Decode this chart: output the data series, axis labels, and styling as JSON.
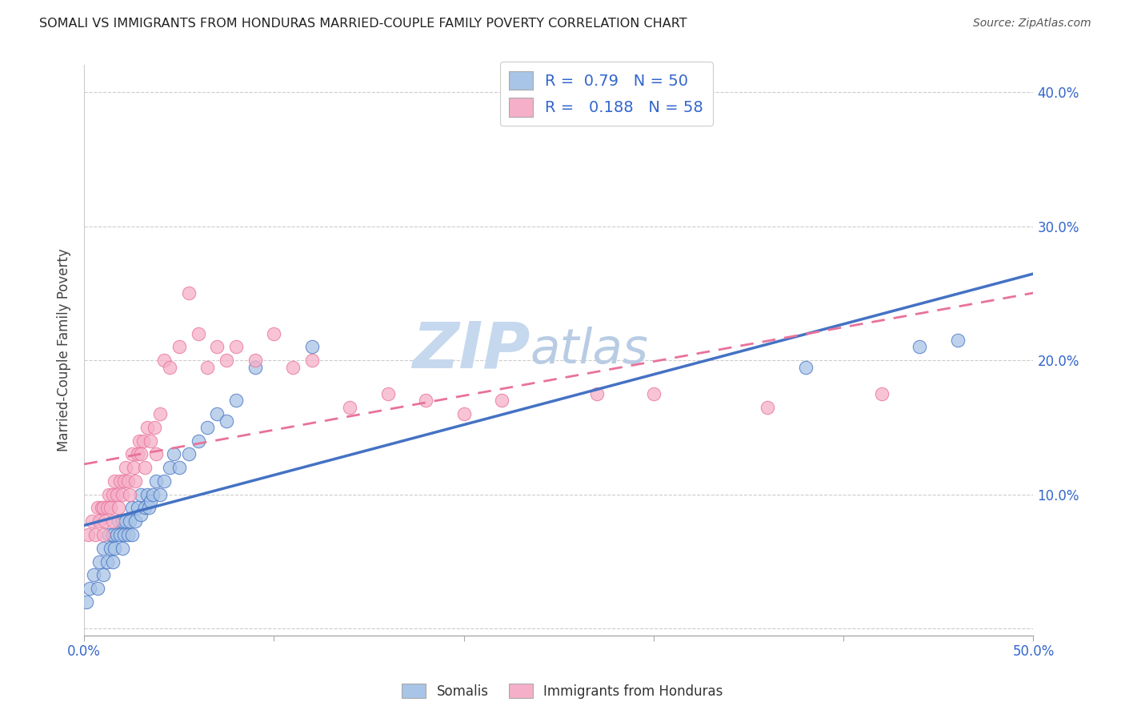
{
  "title": "SOMALI VS IMMIGRANTS FROM HONDURAS MARRIED-COUPLE FAMILY POVERTY CORRELATION CHART",
  "source": "Source: ZipAtlas.com",
  "ylabel": "Married-Couple Family Poverty",
  "xlim": [
    0.0,
    0.5
  ],
  "ylim": [
    -0.005,
    0.42
  ],
  "xticks": [
    0.0,
    0.1,
    0.2,
    0.3,
    0.4,
    0.5
  ],
  "xticklabels": [
    "0.0%",
    "",
    "",
    "",
    "",
    "50.0%"
  ],
  "yticks": [
    0.0,
    0.1,
    0.2,
    0.3,
    0.4
  ],
  "yticklabels_right": [
    "",
    "10.0%",
    "20.0%",
    "30.0%",
    "40.0%"
  ],
  "legend_labels": [
    "Somalis",
    "Immigrants from Honduras"
  ],
  "somali_color": "#a8c4e6",
  "honduras_color": "#f5afc8",
  "somali_line_color": "#4472c4",
  "honduras_line_color": "#e8729a",
  "R_somali": 0.79,
  "N_somali": 50,
  "R_honduras": 0.188,
  "N_honduras": 58,
  "watermark_zip": "ZIP",
  "watermark_atlas": "atlas",
  "watermark_color": "#c5d8ee",
  "somali_x": [
    0.001,
    0.003,
    0.005,
    0.007,
    0.008,
    0.01,
    0.01,
    0.012,
    0.013,
    0.014,
    0.015,
    0.015,
    0.016,
    0.017,
    0.018,
    0.019,
    0.02,
    0.02,
    0.021,
    0.022,
    0.023,
    0.024,
    0.025,
    0.025,
    0.027,
    0.028,
    0.03,
    0.03,
    0.032,
    0.033,
    0.034,
    0.035,
    0.036,
    0.038,
    0.04,
    0.042,
    0.045,
    0.047,
    0.05,
    0.055,
    0.06,
    0.065,
    0.07,
    0.075,
    0.08,
    0.09,
    0.12,
    0.38,
    0.44,
    0.46
  ],
  "somali_y": [
    0.02,
    0.03,
    0.04,
    0.03,
    0.05,
    0.04,
    0.06,
    0.05,
    0.07,
    0.06,
    0.05,
    0.07,
    0.06,
    0.07,
    0.08,
    0.07,
    0.06,
    0.08,
    0.07,
    0.08,
    0.07,
    0.08,
    0.09,
    0.07,
    0.08,
    0.09,
    0.085,
    0.1,
    0.09,
    0.1,
    0.09,
    0.095,
    0.1,
    0.11,
    0.1,
    0.11,
    0.12,
    0.13,
    0.12,
    0.13,
    0.14,
    0.15,
    0.16,
    0.155,
    0.17,
    0.195,
    0.21,
    0.195,
    0.21,
    0.215
  ],
  "honduras_x": [
    0.002,
    0.004,
    0.006,
    0.007,
    0.008,
    0.009,
    0.01,
    0.01,
    0.011,
    0.012,
    0.013,
    0.014,
    0.015,
    0.015,
    0.016,
    0.017,
    0.018,
    0.019,
    0.02,
    0.021,
    0.022,
    0.023,
    0.024,
    0.025,
    0.026,
    0.027,
    0.028,
    0.029,
    0.03,
    0.031,
    0.032,
    0.033,
    0.035,
    0.037,
    0.038,
    0.04,
    0.042,
    0.045,
    0.05,
    0.055,
    0.06,
    0.065,
    0.07,
    0.075,
    0.08,
    0.09,
    0.1,
    0.11,
    0.12,
    0.14,
    0.16,
    0.18,
    0.2,
    0.22,
    0.27,
    0.3,
    0.36,
    0.42
  ],
  "honduras_y": [
    0.07,
    0.08,
    0.07,
    0.09,
    0.08,
    0.09,
    0.07,
    0.09,
    0.08,
    0.09,
    0.1,
    0.09,
    0.08,
    0.1,
    0.11,
    0.1,
    0.09,
    0.11,
    0.1,
    0.11,
    0.12,
    0.11,
    0.1,
    0.13,
    0.12,
    0.11,
    0.13,
    0.14,
    0.13,
    0.14,
    0.12,
    0.15,
    0.14,
    0.15,
    0.13,
    0.16,
    0.2,
    0.195,
    0.21,
    0.25,
    0.22,
    0.195,
    0.21,
    0.2,
    0.21,
    0.2,
    0.22,
    0.195,
    0.2,
    0.165,
    0.175,
    0.17,
    0.16,
    0.17,
    0.175,
    0.175,
    0.165,
    0.175
  ]
}
